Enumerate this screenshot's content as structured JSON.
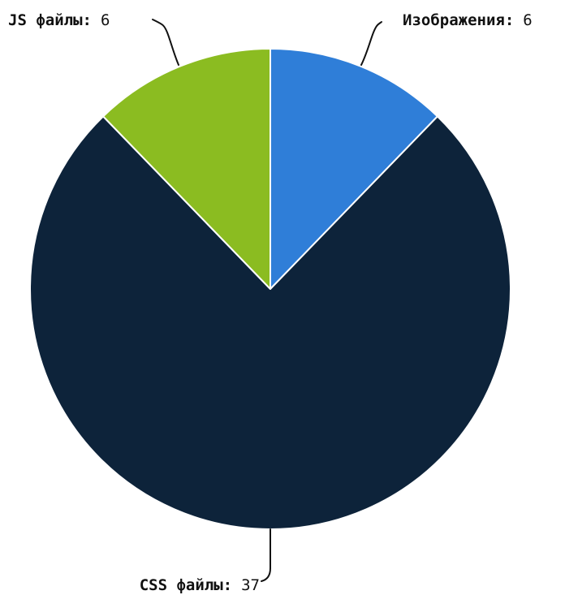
{
  "chart_data": {
    "type": "pie",
    "categories": [
      "Изображения",
      "CSS файлы",
      "JS файлы"
    ],
    "values": [
      6,
      37,
      6
    ],
    "colors": [
      "#2f7ed8",
      "#0d233a",
      "#8bbc21"
    ],
    "start_angle": "top, clockwise",
    "labels": [
      {
        "name": "Изображения",
        "value": "6"
      },
      {
        "name": "CSS файлы",
        "value": "37"
      },
      {
        "name": "JS файлы",
        "value": "6"
      }
    ]
  }
}
